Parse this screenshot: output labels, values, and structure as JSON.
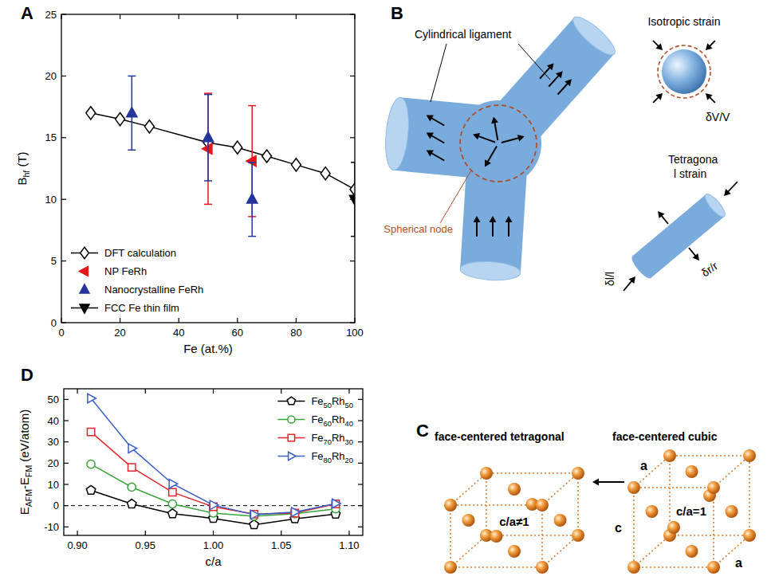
{
  "panel_labels": [
    "A",
    "B",
    "C",
    "D"
  ],
  "chart_data": [
    {
      "type": "scatter",
      "x_label": "Fe (at.%)",
      "y_label": [
        "B",
        "hf",
        " (T)"
      ],
      "xlim": [
        0,
        100
      ],
      "xticks": [
        0,
        20,
        40,
        60,
        80,
        100
      ],
      "ylim": [
        0,
        25
      ],
      "yticks": [
        0,
        5,
        10,
        15,
        20,
        25
      ],
      "legend": "lower left",
      "series": [
        {
          "name": "DFT calculation",
          "color": "#000000",
          "marker": "open-diamond",
          "type": "line",
          "line_style": "solid",
          "x": [
            10,
            20,
            30,
            50,
            60,
            70,
            80,
            90,
            100
          ],
          "values": [
            17.0,
            16.5,
            15.9,
            14.6,
            14.2,
            13.5,
            12.8,
            12.1,
            10.8
          ]
        },
        {
          "name": "NP FeRh",
          "color": "#e8161b",
          "marker": "triangle-left",
          "x": [
            50,
            65
          ],
          "values": [
            14.1,
            13.1
          ],
          "errors": [
            4.5,
            4.5
          ]
        },
        {
          "name": "Nanocrystalline FeRh",
          "color": "#24359c",
          "marker": "triangle-up",
          "x": [
            24,
            50,
            65
          ],
          "values": [
            17.0,
            15.0,
            10.0
          ],
          "errors": [
            3.0,
            3.5,
            3.0
          ]
        },
        {
          "name": "FCC Fe thin film",
          "color": "#000000",
          "marker": "triangle-down",
          "line_style": "solid",
          "x": [
            100
          ],
          "values": [
            10.0
          ],
          "errors": [
            3.0
          ]
        }
      ]
    },
    {
      "type": "line",
      "x_label": "c/a",
      "y_label": [
        "E",
        "AFM",
        "-E",
        "FM",
        " (eV/atom)"
      ],
      "xlim": [
        0.89,
        1.11
      ],
      "xticks": [
        {
          "value": 0.9,
          "label": "0.90"
        },
        {
          "value": 0.95,
          "label": "0.95"
        },
        {
          "value": 1.0,
          "label": "1.00"
        },
        {
          "value": 1.05,
          "label": "1.05"
        },
        {
          "value": 1.1,
          "label": "1.10"
        }
      ],
      "ylim": [
        -14,
        55
      ],
      "yticks": [
        -10,
        0,
        10,
        20,
        30,
        40,
        50
      ],
      "legend": "upper right",
      "reference_lines": [
        0
      ],
      "x": [
        0.91,
        0.94,
        0.97,
        1.0,
        1.03,
        1.06,
        1.09
      ],
      "series": [
        {
          "name": "Fe50Rh50",
          "color": "#000000",
          "marker": "open-pentagon",
          "line_style": "solid",
          "values": [
            7.2,
            0.8,
            -3.8,
            -6.0,
            -9.0,
            -6.2,
            -4.0
          ]
        },
        {
          "name": "Fe60Rh40",
          "color": "#3aa63a",
          "marker": "open-circle",
          "line_style": "solid",
          "values": [
            19.5,
            8.7,
            0.8,
            -3.5,
            -5.0,
            -3.8,
            -1.5
          ]
        },
        {
          "name": "Fe70Rh30",
          "color": "#e0262a",
          "marker": "open-square",
          "line_style": "solid",
          "values": [
            34.7,
            18.0,
            6.3,
            -0.5,
            -4.0,
            -3.5,
            0.8
          ]
        },
        {
          "name": "Fe80Rh20",
          "color": "#3b5fc8",
          "marker": "open-triangle-right",
          "line_style": "solid",
          "values": [
            50.5,
            27.0,
            10.3,
            0.3,
            -4.2,
            -3.0,
            1.0
          ]
        }
      ]
    }
  ],
  "diagram_b": {
    "ligament_label": "Cylindrical ligament",
    "node_label": "Spherical node",
    "isotropic_label": "Isotropic strain",
    "volume_strain": "δV/V",
    "tetragonal_label": [
      "Tetragona",
      "l strain"
    ],
    "radial_strain": "δr/r",
    "axial_strain": "δl/l"
  },
  "diagram_c": {
    "fct_title": "face-centered tetragonal",
    "fcc_title": "face-centered cubic",
    "fct_ratio": "c/a≠1",
    "fcc_ratio": "c/a=1",
    "edge_labels": [
      "c",
      "a",
      "a"
    ]
  }
}
